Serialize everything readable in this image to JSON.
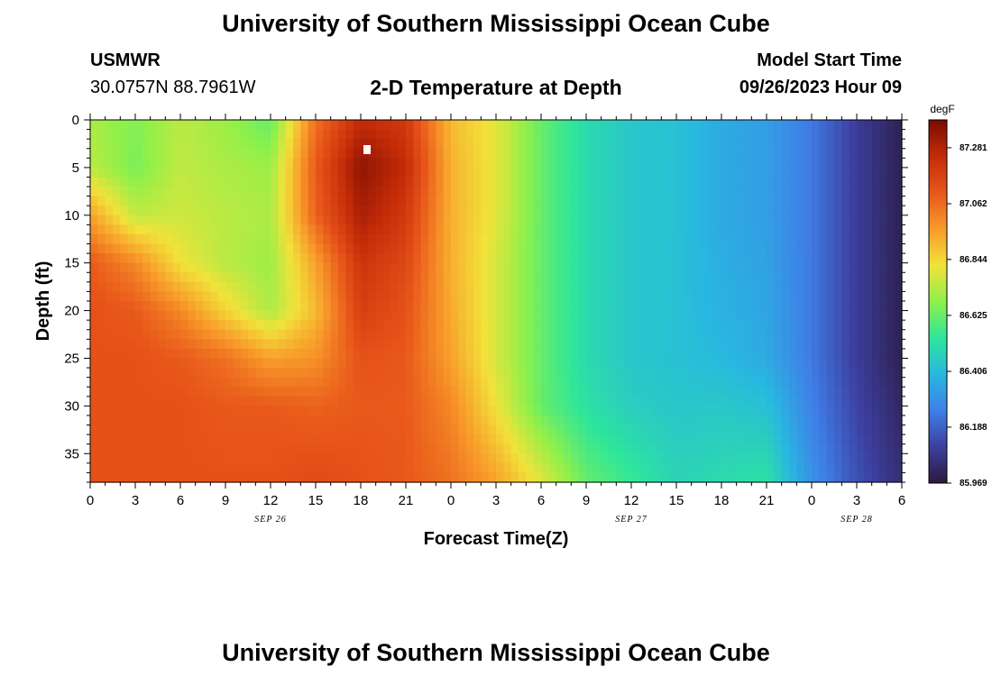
{
  "header": {
    "title": "University of Southern Mississippi Ocean Cube",
    "station_name": "USMWR",
    "station_coords": "30.0757N  88.7961W",
    "plot_title": "2-D Temperature at Depth",
    "model_label": "Model Start Time",
    "model_time": "09/26/2023 Hour 09"
  },
  "footer": {
    "title": "University of Southern Mississippi Ocean Cube"
  },
  "chart_data": {
    "type": "heatmap",
    "title": "2-D Temperature at Depth",
    "xlabel": "Forecast Time(Z)",
    "ylabel": "Depth (ft)",
    "x_ticks": [
      "0",
      "3",
      "6",
      "9",
      "12",
      "15",
      "18",
      "21",
      "0",
      "3",
      "6",
      "9",
      "12",
      "15",
      "18",
      "21",
      "0",
      "3",
      "6"
    ],
    "x_hours": [
      0,
      54
    ],
    "date_labels": [
      {
        "label": "SEP 26",
        "hour": 12
      },
      {
        "label": "SEP 27",
        "hour": 36
      },
      {
        "label": "SEP 28",
        "hour": 51
      }
    ],
    "y_ticks": [
      0,
      5,
      10,
      15,
      20,
      25,
      30,
      35
    ],
    "ylim": [
      0,
      38
    ],
    "colorbar": {
      "unit": "degF",
      "ticks": [
        "87.281",
        "87.062",
        "86.844",
        "86.625",
        "86.406",
        "86.188",
        "85.969"
      ],
      "range": [
        85.969,
        87.39
      ],
      "colors": [
        "#2b1a3b",
        "#3d3fa0",
        "#3f7fe8",
        "#28b8e0",
        "#2ee69a",
        "#8ff04a",
        "#f2e23a",
        "#f89a2a",
        "#e8561a",
        "#c42c08",
        "#7a0a02"
      ]
    },
    "temperature_estimates_degF": {
      "depths_ft": [
        0,
        5,
        10,
        15,
        20,
        25,
        30,
        38
      ],
      "hours": [
        0,
        3,
        6,
        9,
        12,
        15,
        18,
        21,
        24,
        27,
        30,
        33,
        36,
        39,
        42,
        45,
        48,
        51,
        54
      ],
      "rows": [
        [
          86.72,
          86.66,
          86.74,
          86.7,
          86.62,
          87.05,
          87.25,
          87.2,
          86.9,
          86.8,
          86.62,
          86.5,
          86.44,
          86.42,
          86.36,
          86.33,
          86.24,
          86.1,
          86.0
        ],
        [
          86.74,
          86.65,
          86.75,
          86.72,
          86.7,
          87.1,
          87.35,
          87.25,
          86.92,
          86.8,
          86.62,
          86.5,
          86.44,
          86.42,
          86.36,
          86.33,
          86.24,
          86.1,
          86.0
        ],
        [
          86.95,
          86.75,
          86.77,
          86.74,
          86.72,
          87.08,
          87.3,
          87.2,
          86.92,
          86.8,
          86.62,
          86.5,
          86.44,
          86.42,
          86.36,
          86.33,
          86.24,
          86.1,
          86.0
        ],
        [
          87.1,
          87.0,
          86.82,
          86.74,
          86.7,
          86.95,
          87.22,
          87.15,
          86.92,
          86.78,
          86.62,
          86.5,
          86.44,
          86.42,
          86.37,
          86.34,
          86.24,
          86.1,
          86.0
        ],
        [
          87.12,
          87.1,
          87.0,
          86.85,
          86.72,
          86.9,
          87.18,
          87.12,
          86.93,
          86.78,
          86.62,
          86.5,
          86.44,
          86.42,
          86.38,
          86.35,
          86.24,
          86.1,
          86.0
        ],
        [
          87.12,
          87.12,
          87.1,
          87.05,
          86.95,
          86.98,
          87.12,
          87.1,
          86.95,
          86.78,
          86.62,
          86.5,
          86.44,
          86.42,
          86.4,
          86.36,
          86.24,
          86.1,
          86.0
        ],
        [
          87.12,
          87.12,
          87.12,
          87.1,
          87.1,
          87.08,
          87.1,
          87.1,
          87.0,
          86.82,
          86.62,
          86.52,
          86.46,
          86.44,
          86.44,
          86.42,
          86.26,
          86.12,
          86.02
        ],
        [
          87.12,
          87.12,
          87.12,
          87.12,
          87.12,
          87.14,
          87.12,
          87.1,
          87.05,
          86.95,
          86.8,
          86.62,
          86.55,
          86.48,
          86.5,
          86.52,
          86.3,
          86.15,
          86.05
        ]
      ]
    }
  }
}
